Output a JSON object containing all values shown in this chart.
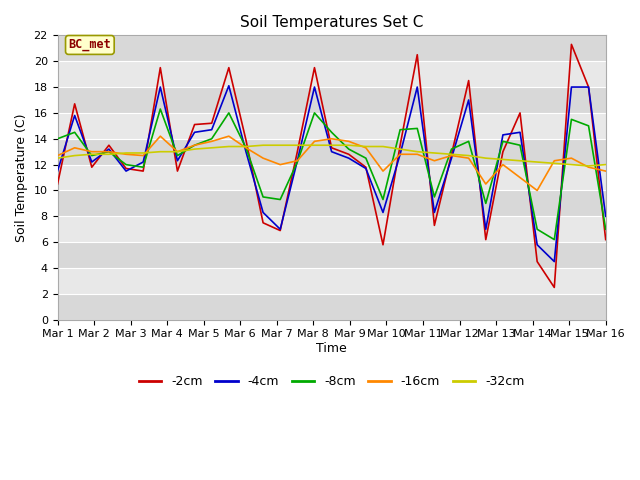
{
  "title": "Soil Temperatures Set C",
  "xlabel": "Time",
  "ylabel": "Soil Temperature (C)",
  "annotation": "BC_met",
  "ylim": [
    0,
    22
  ],
  "xlim": [
    0,
    15
  ],
  "x_tick_labels": [
    "Mar 1",
    "Mar 2",
    "Mar 3",
    "Mar 4",
    "Mar 5",
    "Mar 6",
    "Mar 7",
    "Mar 8",
    "Mar 9",
    "Mar 10",
    "Mar 11",
    "Mar 12",
    "Mar 13",
    "Mar 14",
    "Mar 15",
    "Mar 16"
  ],
  "series": {
    "-2cm": {
      "color": "#cc0000",
      "data": [
        10.5,
        16.7,
        11.8,
        13.5,
        11.7,
        11.5,
        19.5,
        11.5,
        15.1,
        15.2,
        19.5,
        13.9,
        7.5,
        6.9,
        13.0,
        19.5,
        13.3,
        12.8,
        11.8,
        5.8,
        13.5,
        20.5,
        7.3,
        12.8,
        18.5,
        6.2,
        13.0,
        16.0,
        4.5,
        2.5,
        21.3,
        18.0,
        6.2
      ]
    },
    "-4cm": {
      "color": "#0000cc",
      "data": [
        11.5,
        15.8,
        12.2,
        13.2,
        11.5,
        12.2,
        18.0,
        12.3,
        14.5,
        14.7,
        18.1,
        13.0,
        8.3,
        7.0,
        12.3,
        18.0,
        13.0,
        12.5,
        11.7,
        8.3,
        12.8,
        18.0,
        8.3,
        12.5,
        17.0,
        7.0,
        14.3,
        14.5,
        5.8,
        4.5,
        18.0,
        18.0,
        8.0
      ]
    },
    "-8cm": {
      "color": "#00aa00",
      "data": [
        14.0,
        14.5,
        12.7,
        13.0,
        12.0,
        11.8,
        16.3,
        12.7,
        13.5,
        14.0,
        16.0,
        13.3,
        9.5,
        9.3,
        12.2,
        16.0,
        14.5,
        13.2,
        12.5,
        9.3,
        14.7,
        14.8,
        9.5,
        13.2,
        13.8,
        9.0,
        13.8,
        13.5,
        7.0,
        6.2,
        15.5,
        15.0,
        7.0
      ]
    },
    "-16cm": {
      "color": "#ff8800",
      "data": [
        12.7,
        13.3,
        13.0,
        13.0,
        12.8,
        12.7,
        14.2,
        13.0,
        13.5,
        13.8,
        14.2,
        13.3,
        12.5,
        12.0,
        12.3,
        13.8,
        14.0,
        13.8,
        13.3,
        11.5,
        12.8,
        12.8,
        12.3,
        12.7,
        12.5,
        10.5,
        12.0,
        11.0,
        10.0,
        12.3,
        12.5,
        11.8,
        11.5
      ]
    },
    "-32cm": {
      "color": "#cccc00",
      "data": [
        12.5,
        12.7,
        12.8,
        12.8,
        12.9,
        12.9,
        13.0,
        13.0,
        13.2,
        13.3,
        13.4,
        13.4,
        13.5,
        13.5,
        13.5,
        13.5,
        13.5,
        13.5,
        13.4,
        13.4,
        13.2,
        13.0,
        12.9,
        12.8,
        12.7,
        12.5,
        12.4,
        12.3,
        12.2,
        12.1,
        12.0,
        11.9,
        12.0
      ]
    }
  },
  "fig_bg": "#ffffff",
  "plot_bg_light": "#e8e8e8",
  "plot_bg_dark": "#d0d0d0",
  "title_fontsize": 11,
  "tick_fontsize": 8,
  "legend_labels": [
    "-2cm",
    "-4cm",
    "-8cm",
    "-16cm",
    "-32cm"
  ]
}
